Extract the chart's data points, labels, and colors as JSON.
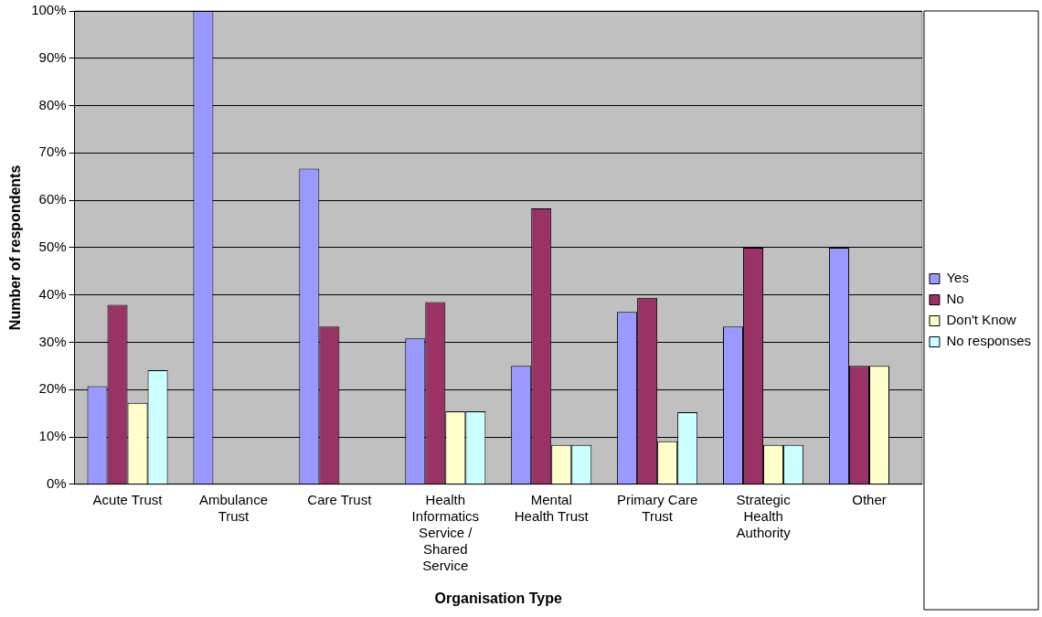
{
  "chart_data": {
    "type": "bar",
    "xlabel": "Organisation Type",
    "ylabel": "Number of respondents",
    "categories": [
      "Acute Trust",
      "Ambulance Trust",
      "Care Trust",
      "Health Informatics Service / Shared Service",
      "Mental Health Trust",
      "Primary Care Trust",
      "Strategic Health Authority",
      "Other"
    ],
    "series": [
      {
        "name": "Yes",
        "color": "#9999ff",
        "values": [
          20.7,
          100,
          66.7,
          30.8,
          25,
          36.4,
          33.3,
          50
        ]
      },
      {
        "name": "No",
        "color": "#993366",
        "values": [
          37.9,
          0,
          33.3,
          38.5,
          58.3,
          39.4,
          50,
          25
        ]
      },
      {
        "name": "Don't Know",
        "color": "#ffffcc",
        "values": [
          17.2,
          0,
          0,
          15.4,
          8.3,
          9.1,
          8.3,
          25
        ]
      },
      {
        "name": "No responses",
        "color": "#ccffff",
        "values": [
          24.1,
          0,
          0,
          15.4,
          8.3,
          15.2,
          8.3,
          0
        ]
      }
    ],
    "ylim": [
      0,
      100
    ],
    "yticks": [
      {
        "value": 0,
        "label": "0%"
      },
      {
        "value": 10,
        "label": "10%"
      },
      {
        "value": 20,
        "label": "20%"
      },
      {
        "value": 30,
        "label": "30%"
      },
      {
        "value": 40,
        "label": "40%"
      },
      {
        "value": 50,
        "label": "50%"
      },
      {
        "value": 60,
        "label": "60%"
      },
      {
        "value": 70,
        "label": "70%"
      },
      {
        "value": 80,
        "label": "80%"
      },
      {
        "value": 90,
        "label": "90%"
      },
      {
        "value": 100,
        "label": "100%"
      }
    ],
    "grid": "y",
    "legend": "right"
  }
}
